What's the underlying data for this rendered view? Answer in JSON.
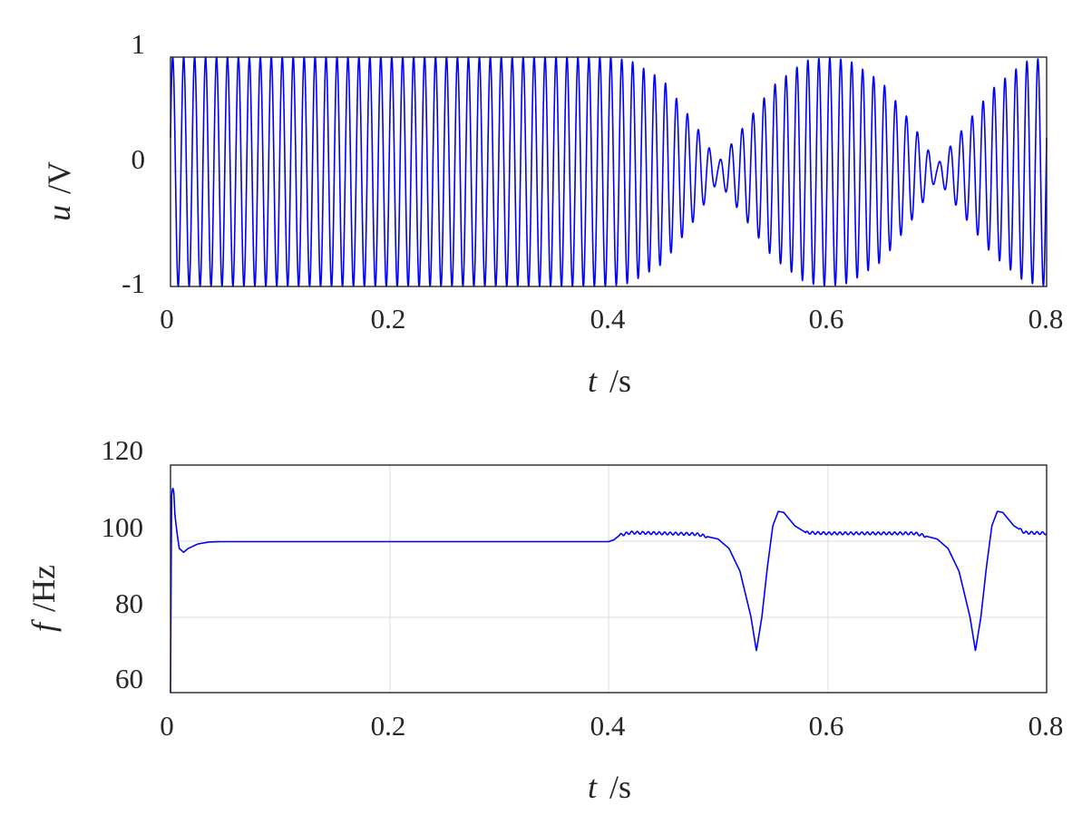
{
  "chart_data": [
    {
      "type": "line",
      "ylabel_symbol": "u",
      "ylabel_unit": "/V",
      "xlabel_symbol": "t",
      "xlabel_unit": "/s",
      "xlim": [
        0,
        0.8
      ],
      "ylim": [
        -1,
        1
      ],
      "xticks": [
        "0",
        "0.2",
        "0.4",
        "0.6",
        "0.8"
      ],
      "yticks": [
        "-1",
        "0",
        "1"
      ],
      "grid": false,
      "series": [
        {
          "color": "#0000ff",
          "description": "100 Hz carrier, constant 1 V amplitude until 0.4 s, then beating envelope between 100 Hz and 105 Hz components",
          "carrier_frequency_hz": 100,
          "envelope": {
            "t": [
              0,
              0.4,
              0.42,
              0.45,
              0.48,
              0.5,
              0.52,
              0.55,
              0.58,
              0.6,
              0.62,
              0.65,
              0.68,
              0.7,
              0.72,
              0.75,
              0.78,
              0.8
            ],
            "amplitude": [
              1,
              1,
              0.97,
              0.8,
              0.4,
              0.08,
              0.35,
              0.75,
              0.97,
              1,
              0.97,
              0.78,
              0.38,
              0.06,
              0.33,
              0.72,
              0.96,
              1
            ]
          }
        }
      ]
    },
    {
      "type": "line",
      "ylabel_symbol": "f",
      "ylabel_unit": "/Hz",
      "xlabel_symbol": "t",
      "xlabel_unit": "/s",
      "xlim": [
        0,
        0.8
      ],
      "ylim": [
        60,
        120
      ],
      "xticks": [
        "0",
        "0.2",
        "0.4",
        "0.6",
        "0.8"
      ],
      "yticks": [
        "60",
        "80",
        "100",
        "120"
      ],
      "grid": true,
      "series": [
        {
          "color": "#0000ff",
          "x": [
            0,
            0.001,
            0.002,
            0.003,
            0.004,
            0.006,
            0.008,
            0.012,
            0.016,
            0.025,
            0.035,
            0.045,
            0.1,
            0.2,
            0.3,
            0.4,
            0.405,
            0.41,
            0.42,
            0.45,
            0.48,
            0.5,
            0.51,
            0.52,
            0.53,
            0.535,
            0.54,
            0.545,
            0.55,
            0.555,
            0.56,
            0.57,
            0.58,
            0.6,
            0.65,
            0.68,
            0.7,
            0.71,
            0.72,
            0.73,
            0.735,
            0.74,
            0.745,
            0.75,
            0.755,
            0.76,
            0.77,
            0.78,
            0.8
          ],
          "y": [
            60,
            112,
            114,
            113,
            107,
            102,
            98,
            97,
            98,
            99.2,
            99.7,
            99.8,
            99.8,
            99.8,
            99.8,
            99.8,
            100.3,
            101.5,
            102.2,
            102,
            101.8,
            100.5,
            98,
            92,
            80,
            71,
            80,
            93,
            104,
            107.8,
            107.5,
            104,
            102.2,
            102,
            102,
            102,
            100.5,
            98,
            92,
            80,
            71,
            80,
            93,
            104,
            107.8,
            107.5,
            104,
            102.2,
            102
          ]
        }
      ]
    }
  ]
}
